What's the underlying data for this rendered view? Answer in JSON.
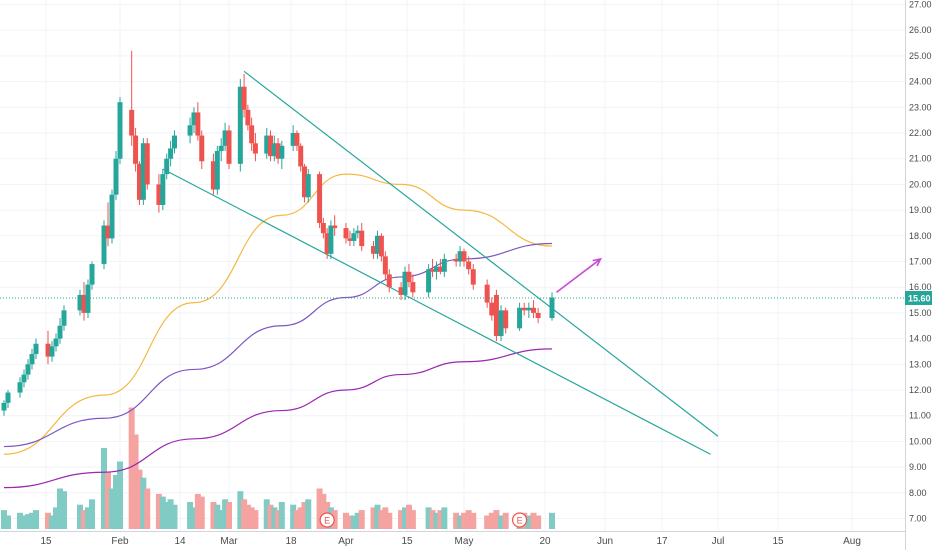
{
  "chart_data": {
    "type": "candlestick",
    "price_axis": {
      "ticks": [
        "27.00",
        "26.00",
        "25.00",
        "24.00",
        "23.00",
        "22.00",
        "21.00",
        "20.00",
        "19.00",
        "18.00",
        "17.00",
        "16.00",
        "15.00",
        "14.00",
        "13.00",
        "12.00",
        "11.00",
        "10.00",
        "9.00",
        "8.00",
        "7.00"
      ],
      "range": [
        6.6,
        27.1
      ]
    },
    "last_price": {
      "label": "15.60",
      "value": 15.6
    },
    "time_axis": {
      "labels": [
        "15",
        "Feb",
        "14",
        "Mar",
        "18",
        "Apr",
        "15",
        "May",
        "20",
        "Jun",
        "17",
        "Jul",
        "15",
        "Aug"
      ]
    },
    "earnings_markers": [
      "E",
      "E"
    ],
    "candles": [
      {
        "x": "Jan 3",
        "o": 11.2,
        "h": 11.6,
        "l": 11.0,
        "c": 11.5
      },
      {
        "x": "Jan 4",
        "o": 11.5,
        "h": 12.0,
        "l": 11.3,
        "c": 11.9
      },
      {
        "x": "Jan 7",
        "o": 11.9,
        "h": 12.5,
        "l": 11.7,
        "c": 12.3
      },
      {
        "x": "Jan 8",
        "o": 12.3,
        "h": 12.8,
        "l": 12.1,
        "c": 12.6
      },
      {
        "x": "Jan 9",
        "o": 12.6,
        "h": 13.2,
        "l": 12.4,
        "c": 13.0
      },
      {
        "x": "Jan 10",
        "o": 13.0,
        "h": 13.6,
        "l": 12.8,
        "c": 13.4
      },
      {
        "x": "Jan 11",
        "o": 13.4,
        "h": 14.0,
        "l": 13.2,
        "c": 13.8
      },
      {
        "x": "Jan 14",
        "o": 13.8,
        "h": 14.3,
        "l": 13.0,
        "c": 13.3
      },
      {
        "x": "Jan 15",
        "o": 13.3,
        "h": 13.9,
        "l": 13.1,
        "c": 13.7
      },
      {
        "x": "Jan 16",
        "o": 13.7,
        "h": 14.2,
        "l": 13.5,
        "c": 14.0
      },
      {
        "x": "Jan 17",
        "o": 14.0,
        "h": 14.8,
        "l": 13.8,
        "c": 14.5
      },
      {
        "x": "Jan 18",
        "o": 14.5,
        "h": 15.3,
        "l": 14.3,
        "c": 15.1
      },
      {
        "x": "Jan 22",
        "o": 15.1,
        "h": 15.9,
        "l": 14.9,
        "c": 15.7
      },
      {
        "x": "Jan 23",
        "o": 15.7,
        "h": 16.2,
        "l": 14.7,
        "c": 15.0
      },
      {
        "x": "Jan 24",
        "o": 15.0,
        "h": 16.3,
        "l": 14.8,
        "c": 16.1
      },
      {
        "x": "Jan 25",
        "o": 16.1,
        "h": 17.0,
        "l": 15.9,
        "c": 16.9
      },
      {
        "x": "Jan 28",
        "o": 16.9,
        "h": 18.6,
        "l": 16.7,
        "c": 18.4
      },
      {
        "x": "Jan 29",
        "o": 18.4,
        "h": 19.3,
        "l": 17.6,
        "c": 17.9
      },
      {
        "x": "Jan 30",
        "o": 17.9,
        "h": 19.8,
        "l": 17.7,
        "c": 19.6
      },
      {
        "x": "Jan 31",
        "o": 19.6,
        "h": 21.3,
        "l": 19.4,
        "c": 21.0
      },
      {
        "x": "Feb 1",
        "o": 21.0,
        "h": 23.4,
        "l": 20.8,
        "c": 23.2
      },
      {
        "x": "Feb 4",
        "o": 22.9,
        "h": 25.2,
        "l": 21.5,
        "c": 21.9
      },
      {
        "x": "Feb 5",
        "o": 21.9,
        "h": 22.2,
        "l": 20.5,
        "c": 20.8
      },
      {
        "x": "Feb 6",
        "o": 20.8,
        "h": 20.9,
        "l": 19.2,
        "c": 19.4
      },
      {
        "x": "Feb 7",
        "o": 19.4,
        "h": 21.8,
        "l": 19.2,
        "c": 21.6
      },
      {
        "x": "Feb 8",
        "o": 21.6,
        "h": 21.8,
        "l": 19.8,
        "c": 20.0
      },
      {
        "x": "Feb 11",
        "o": 20.0,
        "h": 20.4,
        "l": 18.9,
        "c": 19.2
      },
      {
        "x": "Feb 12",
        "o": 19.2,
        "h": 20.6,
        "l": 19.0,
        "c": 20.4
      },
      {
        "x": "Feb 13",
        "o": 20.4,
        "h": 21.2,
        "l": 20.2,
        "c": 21.0
      },
      {
        "x": "Feb 14",
        "o": 21.0,
        "h": 21.7,
        "l": 20.7,
        "c": 21.4
      },
      {
        "x": "Feb 15",
        "o": 21.4,
        "h": 22.1,
        "l": 21.2,
        "c": 21.9
      },
      {
        "x": "Feb 19",
        "o": 21.9,
        "h": 22.6,
        "l": 21.6,
        "c": 22.3
      },
      {
        "x": "Feb 20",
        "o": 22.3,
        "h": 23.0,
        "l": 22.0,
        "c": 22.8
      },
      {
        "x": "Feb 21",
        "o": 22.8,
        "h": 23.2,
        "l": 21.7,
        "c": 21.9
      },
      {
        "x": "Feb 22",
        "o": 21.9,
        "h": 22.1,
        "l": 20.6,
        "c": 20.9
      },
      {
        "x": "Feb 25",
        "o": 20.9,
        "h": 21.2,
        "l": 19.6,
        "c": 19.8
      },
      {
        "x": "Feb 26",
        "o": 19.8,
        "h": 21.5,
        "l": 19.6,
        "c": 21.3
      },
      {
        "x": "Feb 27",
        "o": 21.3,
        "h": 21.8,
        "l": 20.9,
        "c": 21.5
      },
      {
        "x": "Feb 28",
        "o": 21.5,
        "h": 22.4,
        "l": 21.3,
        "c": 22.1
      },
      {
        "x": "Mar 1",
        "o": 22.1,
        "h": 22.3,
        "l": 20.6,
        "c": 20.8
      },
      {
        "x": "Mar 4",
        "o": 20.8,
        "h": 24.1,
        "l": 20.5,
        "c": 23.8
      },
      {
        "x": "Mar 5",
        "o": 23.8,
        "h": 24.3,
        "l": 22.6,
        "c": 22.9
      },
      {
        "x": "Mar 6",
        "o": 22.9,
        "h": 23.1,
        "l": 22.1,
        "c": 22.3
      },
      {
        "x": "Mar 7",
        "o": 22.3,
        "h": 22.6,
        "l": 21.3,
        "c": 21.6
      },
      {
        "x": "Mar 8",
        "o": 21.6,
        "h": 22.0,
        "l": 20.9,
        "c": 21.2
      },
      {
        "x": "Mar 11",
        "o": 21.2,
        "h": 22.2,
        "l": 21.0,
        "c": 21.9
      },
      {
        "x": "Mar 12",
        "o": 21.9,
        "h": 22.1,
        "l": 20.9,
        "c": 21.1
      },
      {
        "x": "Mar 13",
        "o": 21.1,
        "h": 21.9,
        "l": 20.9,
        "c": 21.6
      },
      {
        "x": "Mar 14",
        "o": 21.6,
        "h": 21.8,
        "l": 20.8,
        "c": 21.0
      },
      {
        "x": "Mar 15",
        "o": 21.0,
        "h": 21.7,
        "l": 20.6,
        "c": 21.5
      },
      {
        "x": "Mar 18",
        "o": 21.5,
        "h": 22.3,
        "l": 21.3,
        "c": 22.0
      },
      {
        "x": "Mar 19",
        "o": 22.0,
        "h": 22.1,
        "l": 21.3,
        "c": 21.5
      },
      {
        "x": "Mar 20",
        "o": 21.5,
        "h": 21.6,
        "l": 20.5,
        "c": 20.7
      },
      {
        "x": "Mar 21",
        "o": 20.7,
        "h": 20.8,
        "l": 19.3,
        "c": 19.5
      },
      {
        "x": "Mar 22",
        "o": 19.5,
        "h": 20.6,
        "l": 19.3,
        "c": 20.4
      },
      {
        "x": "Mar 25",
        "o": 20.4,
        "h": 20.5,
        "l": 18.3,
        "c": 18.5
      },
      {
        "x": "Mar 26",
        "o": 18.5,
        "h": 18.7,
        "l": 17.9,
        "c": 18.1
      },
      {
        "x": "Mar 27",
        "o": 18.1,
        "h": 18.3,
        "l": 17.1,
        "c": 17.3
      },
      {
        "x": "Mar 28",
        "o": 17.3,
        "h": 18.6,
        "l": 17.1,
        "c": 18.4
      },
      {
        "x": "Mar 29",
        "o": 18.4,
        "h": 18.8,
        "l": 18.0,
        "c": 18.3
      },
      {
        "x": "Apr 1",
        "o": 18.3,
        "h": 18.5,
        "l": 17.7,
        "c": 17.9
      },
      {
        "x": "Apr 2",
        "o": 17.9,
        "h": 18.2,
        "l": 17.6,
        "c": 17.8
      },
      {
        "x": "Apr 3",
        "o": 17.8,
        "h": 18.3,
        "l": 17.6,
        "c": 18.1
      },
      {
        "x": "Apr 4",
        "o": 18.1,
        "h": 18.4,
        "l": 17.9,
        "c": 18.2
      },
      {
        "x": "Apr 5",
        "o": 18.2,
        "h": 18.5,
        "l": 17.4,
        "c": 17.6
      },
      {
        "x": "Apr 8",
        "o": 17.6,
        "h": 17.8,
        "l": 17.1,
        "c": 17.3
      },
      {
        "x": "Apr 9",
        "o": 17.3,
        "h": 18.2,
        "l": 17.1,
        "c": 18.0
      },
      {
        "x": "Apr 10",
        "o": 18.0,
        "h": 18.1,
        "l": 17.0,
        "c": 17.2
      },
      {
        "x": "Apr 11",
        "o": 17.2,
        "h": 17.4,
        "l": 16.3,
        "c": 16.5
      },
      {
        "x": "Apr 12",
        "o": 16.5,
        "h": 16.7,
        "l": 15.8,
        "c": 16.0
      },
      {
        "x": "Apr 15",
        "o": 16.0,
        "h": 16.2,
        "l": 15.5,
        "c": 15.7
      },
      {
        "x": "Apr 16",
        "o": 15.7,
        "h": 16.8,
        "l": 15.5,
        "c": 16.6
      },
      {
        "x": "Apr 17",
        "o": 16.6,
        "h": 16.9,
        "l": 16.0,
        "c": 16.2
      },
      {
        "x": "Apr 18",
        "o": 16.2,
        "h": 16.5,
        "l": 15.6,
        "c": 15.8
      },
      {
        "x": "Apr 22",
        "o": 15.8,
        "h": 16.9,
        "l": 15.6,
        "c": 16.7
      },
      {
        "x": "Apr 23",
        "o": 16.7,
        "h": 17.1,
        "l": 16.4,
        "c": 16.6
      },
      {
        "x": "Apr 24",
        "o": 16.6,
        "h": 17.0,
        "l": 16.3,
        "c": 16.8
      },
      {
        "x": "Apr 25",
        "o": 16.8,
        "h": 17.1,
        "l": 16.5,
        "c": 16.6
      },
      {
        "x": "Apr 26",
        "o": 16.6,
        "h": 17.3,
        "l": 16.4,
        "c": 17.1
      },
      {
        "x": "Apr 29",
        "o": 17.1,
        "h": 17.3,
        "l": 16.8,
        "c": 17.0
      },
      {
        "x": "Apr 30",
        "o": 17.0,
        "h": 17.6,
        "l": 16.8,
        "c": 17.4
      },
      {
        "x": "May 1",
        "o": 17.4,
        "h": 17.5,
        "l": 16.8,
        "c": 17.0
      },
      {
        "x": "May 2",
        "o": 17.0,
        "h": 17.2,
        "l": 16.5,
        "c": 16.7
      },
      {
        "x": "May 3",
        "o": 16.7,
        "h": 16.9,
        "l": 15.9,
        "c": 16.1
      },
      {
        "x": "May 6",
        "o": 16.1,
        "h": 16.3,
        "l": 15.2,
        "c": 15.4
      },
      {
        "x": "May 7",
        "o": 15.4,
        "h": 15.6,
        "l": 14.7,
        "c": 14.9
      },
      {
        "x": "May 8",
        "o": 15.7,
        "h": 15.9,
        "l": 13.9,
        "c": 14.1
      },
      {
        "x": "May 9",
        "o": 14.1,
        "h": 15.3,
        "l": 13.9,
        "c": 15.1
      },
      {
        "x": "May 10",
        "o": 15.1,
        "h": 15.2,
        "l": 14.2,
        "c": 14.4
      },
      {
        "x": "May 13",
        "o": 14.4,
        "h": 15.4,
        "l": 14.3,
        "c": 15.2
      },
      {
        "x": "May 14",
        "o": 15.2,
        "h": 15.4,
        "l": 14.9,
        "c": 15.1
      },
      {
        "x": "May 15",
        "o": 15.1,
        "h": 15.4,
        "l": 14.8,
        "c": 15.2
      },
      {
        "x": "May 16",
        "o": 15.2,
        "h": 15.5,
        "l": 14.8,
        "c": 15.0
      },
      {
        "x": "May 17",
        "o": 15.0,
        "h": 15.2,
        "l": 14.6,
        "c": 14.8
      },
      {
        "x": "May 20",
        "o": 14.8,
        "h": 15.8,
        "l": 14.7,
        "c": 15.6
      }
    ],
    "volume": [
      14,
      10,
      12,
      10,
      11,
      12,
      14,
      12,
      10,
      16,
      30,
      28,
      18,
      14,
      16,
      22,
      60,
      42,
      30,
      40,
      50,
      90,
      70,
      44,
      38,
      30,
      26,
      24,
      20,
      22,
      18,
      20,
      16,
      26,
      24,
      20,
      18,
      14,
      22,
      20,
      28,
      22,
      18,
      16,
      14,
      22,
      18,
      16,
      14,
      20,
      18,
      14,
      16,
      20,
      22,
      30,
      26,
      20,
      16,
      14,
      12,
      10,
      10,
      12,
      14,
      16,
      18,
      14,
      16,
      12,
      14,
      16,
      18,
      14,
      16,
      14,
      12,
      14,
      16,
      12,
      10,
      12,
      14,
      12,
      10,
      12,
      14,
      10,
      12,
      10,
      12,
      10,
      12,
      10,
      12,
      14
    ],
    "volume_scale_max": 100,
    "moving_averages": [
      {
        "color": "#f5b942",
        "x": [
          "Jan 3",
          "Jan 28",
          "Feb 20",
          "Mar 15",
          "Apr 1",
          "Apr 15",
          "May 1",
          "May 20"
        ],
        "y": [
          9.5,
          11.8,
          15.4,
          18.8,
          20.4,
          20.0,
          19.0,
          17.6
        ]
      },
      {
        "color": "#7e57c2",
        "x": [
          "Jan 3",
          "Jan 28",
          "Feb 20",
          "Mar 15",
          "Apr 1",
          "Apr 15",
          "May 1",
          "May 20"
        ],
        "y": [
          9.8,
          10.9,
          12.8,
          14.5,
          15.6,
          16.4,
          17.1,
          17.7
        ]
      },
      {
        "color": "#9c27b0",
        "x": [
          "Jan 3",
          "Jan 28",
          "Feb 20",
          "Mar 15",
          "Apr 1",
          "Apr 15",
          "May 1",
          "May 20"
        ],
        "y": [
          8.2,
          8.8,
          10.1,
          11.2,
          12.0,
          12.6,
          13.1,
          13.6
        ]
      }
    ],
    "trendlines": [
      {
        "color": "#26a69a",
        "from": {
          "x": "Mar 5",
          "y": 24.4
        },
        "to": {
          "x": "Jul 1",
          "y": 10.2
        }
      },
      {
        "color": "#26a69a",
        "from": {
          "x": "Feb 12",
          "y": 20.6
        },
        "to": {
          "x": "Jun 29",
          "y": 9.5
        }
      }
    ],
    "projection_arrow": {
      "color": "#c94bd8",
      "from": {
        "x": "May 21",
        "y": 15.8
      },
      "to": {
        "x": "May 31",
        "y": 17.1
      }
    },
    "colors": {
      "up": "#26a69a",
      "down": "#ef5350",
      "up_volume": "#80cbc4",
      "down_volume": "#f4a3a0",
      "price_line": "#26a69a",
      "axis_text": "#4a4a4a"
    }
  }
}
